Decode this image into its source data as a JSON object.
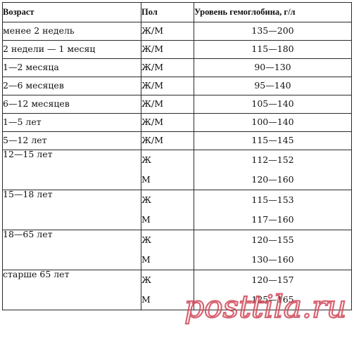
{
  "table": {
    "headers": {
      "age": "Возраст",
      "sex": "Пол",
      "hemoglobin": "Уровень гемоглобина, г/л"
    },
    "rows_single": [
      {
        "age": "менее 2 недель",
        "sex": "Ж/М",
        "hb": "135—200"
      },
      {
        "age": "2 недели — 1 месяц",
        "sex": "Ж/М",
        "hb": "115—180"
      },
      {
        "age": "1—2 месяца",
        "sex": "Ж/М",
        "hb": "90—130"
      },
      {
        "age": "2—6 месяцев",
        "sex": "Ж/М",
        "hb": "95—140"
      },
      {
        "age": "6—12 месяцев",
        "sex": "Ж/М",
        "hb": "105—140"
      },
      {
        "age": "1—5 лет",
        "sex": "Ж/М",
        "hb": "100—140"
      },
      {
        "age": "5—12 лет",
        "sex": "Ж/М",
        "hb": "115—145"
      }
    ],
    "rows_split": [
      {
        "age": "12—15 лет",
        "female_label": "Ж",
        "female_hb": "112—152",
        "male_label": "М",
        "male_hb": "120—160"
      },
      {
        "age": "15—18 лет",
        "female_label": "Ж",
        "female_hb": "115—153",
        "male_label": "М",
        "male_hb": "117—160"
      },
      {
        "age": "18—65 лет",
        "female_label": "Ж",
        "female_hb": "120—155",
        "male_label": "М",
        "male_hb": "130—160"
      },
      {
        "age": "старше 65 лет",
        "female_label": "Ж",
        "female_hb": "120—157",
        "male_label": "М",
        "male_hb": "125—165"
      }
    ]
  },
  "watermark": {
    "text": "posttila.ru",
    "color": "#d24a5a"
  }
}
